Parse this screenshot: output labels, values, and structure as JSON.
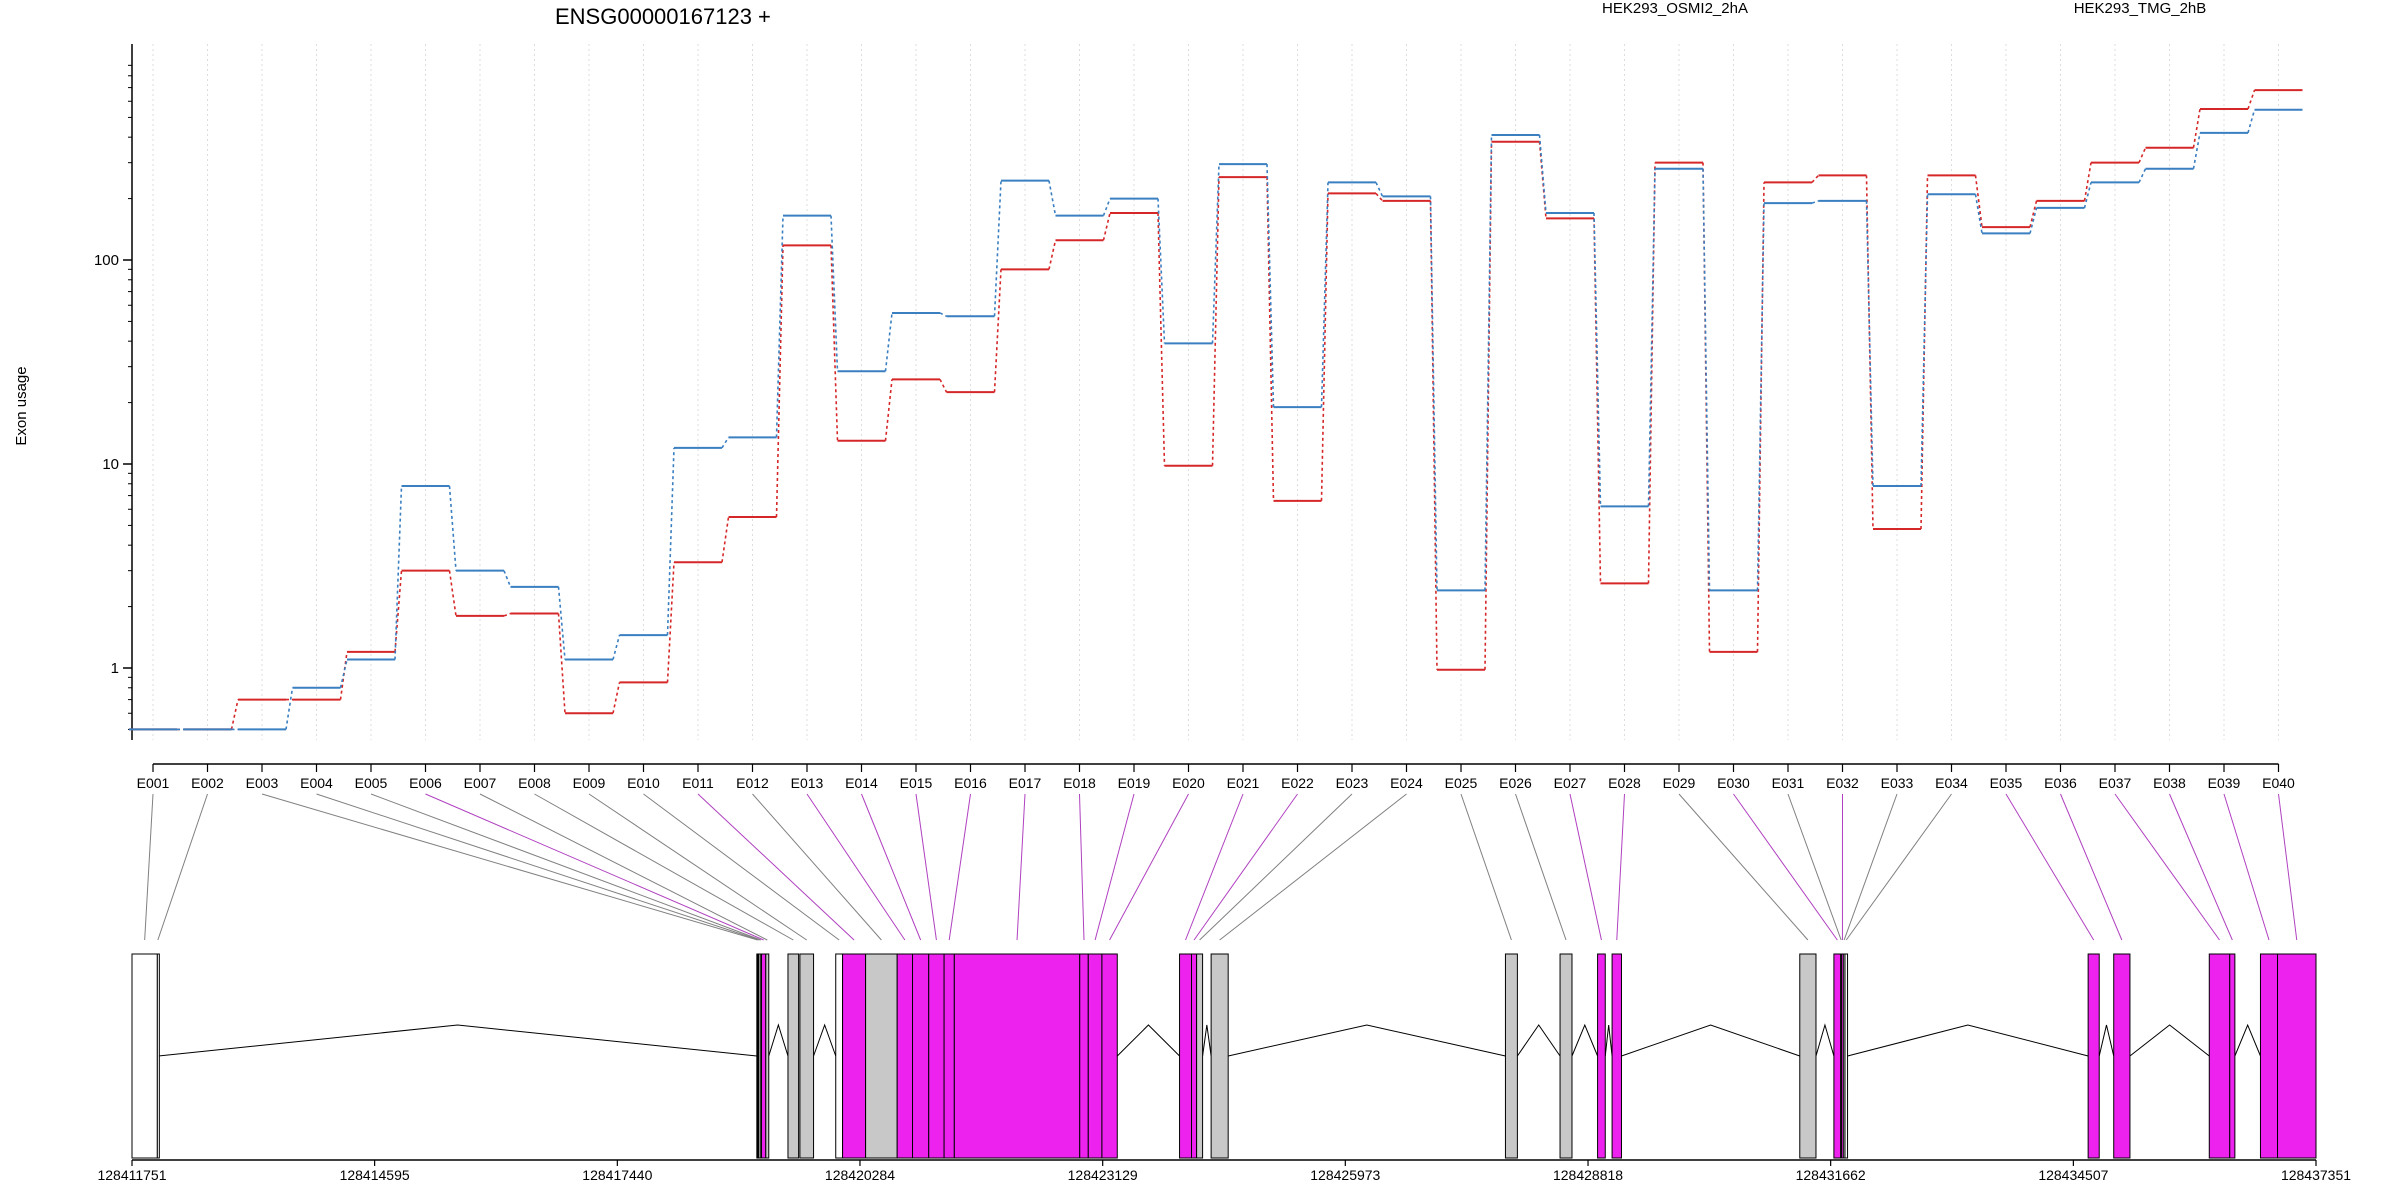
{
  "chart_data": {
    "type": "line",
    "title": "ENSG00000167123 +",
    "ylabel": "Exon usage",
    "xlabel": "",
    "y_scale": "log",
    "y_ticks": [
      {
        "value": 1,
        "label": "1"
      },
      {
        "value": 10,
        "label": "10"
      },
      {
        "value": 100,
        "label": "100"
      }
    ],
    "legend_placement": "top",
    "grid": "vertical dotted lines at exon bins",
    "exon_bins": [
      "E001",
      "E002",
      "E003",
      "E004",
      "E005",
      "E006",
      "E007",
      "E008",
      "E009",
      "E010",
      "E011",
      "E012",
      "E013",
      "E014",
      "E015",
      "E016",
      "E017",
      "E018",
      "E019",
      "E020",
      "E021",
      "E022",
      "E023",
      "E024",
      "E025",
      "E026",
      "E027",
      "E028",
      "E029",
      "E030",
      "E031",
      "E032",
      "E033",
      "E034",
      "E035",
      "E036",
      "E037",
      "E038",
      "E039",
      "E040"
    ],
    "series": [
      {
        "name": "HEK293_OSMI2_2hA",
        "color": "#d62728",
        "values": [
          0.5,
          0.5,
          0.7,
          0.7,
          1.2,
          3.0,
          1.8,
          1.85,
          0.6,
          0.85,
          3.3,
          5.5,
          118,
          13,
          26,
          22.5,
          90,
          125,
          170,
          9.8,
          255,
          6.6,
          212,
          195,
          0.98,
          380,
          160,
          2.6,
          300,
          1.2,
          240,
          260,
          4.8,
          260,
          145,
          195,
          300,
          355,
          550,
          680
        ]
      },
      {
        "name": "HEK293_TMG_2hB",
        "color": "#3a7fc0",
        "values": [
          0.5,
          0.5,
          0.5,
          0.8,
          1.1,
          7.8,
          3.0,
          2.5,
          1.1,
          1.45,
          12,
          13.5,
          165,
          28.5,
          55,
          53,
          245,
          165,
          200,
          39,
          295,
          19,
          240,
          205,
          2.4,
          410,
          170,
          6.2,
          280,
          2.4,
          190,
          195,
          7.8,
          210,
          135,
          180,
          240,
          280,
          420,
          545
        ]
      }
    ],
    "genomic_ticks": [
      "128411751",
      "128414595",
      "128417440",
      "128420284",
      "128423129",
      "128425973",
      "128428818",
      "128431662",
      "128434507",
      "128437351"
    ],
    "genomic_range": [
      128411751,
      128437351
    ],
    "exon_model": [
      {
        "bin": "E001",
        "start": 128411751,
        "end": 128412048,
        "fill": "#ffffff"
      },
      {
        "bin": "E002",
        "start": 128412048,
        "end": 128412060,
        "fill": "#ffffff"
      },
      {
        "bin": "E003",
        "start": 128419075,
        "end": 128419095,
        "fill": "#000000"
      },
      {
        "bin": "E004",
        "start": 128419095,
        "end": 128419115,
        "fill": "#c8c8c8"
      },
      {
        "bin": "E005",
        "start": 128419115,
        "end": 128419130,
        "fill": "#c8c8c8"
      },
      {
        "bin": "E006",
        "start": 128419130,
        "end": 128419180,
        "fill": "#ee22ee"
      },
      {
        "bin": "E007",
        "start": 128419180,
        "end": 128419215,
        "fill": "#c8c8c8"
      },
      {
        "bin": "E008",
        "start": 128419440,
        "end": 128419565,
        "fill": "#c8c8c8"
      },
      {
        "bin": "E009",
        "start": 128419580,
        "end": 128419740,
        "fill": "#c8c8c8"
      },
      {
        "bin": "E010",
        "start": 128420000,
        "end": 128420080,
        "fill": "#ffffff"
      },
      {
        "bin": "E011",
        "start": 128420080,
        "end": 128420350,
        "fill": "#ee22ee"
      },
      {
        "bin": "E012",
        "start": 128420350,
        "end": 128420720,
        "fill": "#c8c8c8"
      },
      {
        "bin": "E013",
        "start": 128420720,
        "end": 128420900,
        "fill": "#ee22ee"
      },
      {
        "bin": "E014",
        "start": 128420900,
        "end": 128421090,
        "fill": "#ee22ee"
      },
      {
        "bin": "E015",
        "start": 128421090,
        "end": 128421270,
        "fill": "#ee22ee"
      },
      {
        "bin": "E016",
        "start": 128421270,
        "end": 128421390,
        "fill": "#ee22ee"
      },
      {
        "bin": "E017",
        "start": 128421390,
        "end": 128422860,
        "fill": "#ee22ee"
      },
      {
        "bin": "E018",
        "start": 128422860,
        "end": 128422960,
        "fill": "#ee22ee"
      },
      {
        "bin": "E019",
        "start": 128422960,
        "end": 128423120,
        "fill": "#ee22ee"
      },
      {
        "bin": "E020",
        "start": 128423120,
        "end": 128423300,
        "fill": "#ee22ee"
      },
      {
        "bin": "E021",
        "start": 128424030,
        "end": 128424170,
        "fill": "#ee22ee"
      },
      {
        "bin": "E022",
        "start": 128424170,
        "end": 128424230,
        "fill": "#ee22ee"
      },
      {
        "bin": "E023",
        "start": 128424230,
        "end": 128424300,
        "fill": "#c8c8c8"
      },
      {
        "bin": "E024",
        "start": 128424400,
        "end": 128424600,
        "fill": "#c8c8c8"
      },
      {
        "bin": "E025",
        "start": 128427850,
        "end": 128427990,
        "fill": "#c8c8c8"
      },
      {
        "bin": "E026",
        "start": 128428490,
        "end": 128428630,
        "fill": "#c8c8c8"
      },
      {
        "bin": "E027",
        "start": 128428930,
        "end": 128429020,
        "fill": "#ee22ee"
      },
      {
        "bin": "E028",
        "start": 128429100,
        "end": 128429210,
        "fill": "#ee22ee"
      },
      {
        "bin": "E029",
        "start": 128431300,
        "end": 128431490,
        "fill": "#c8c8c8"
      },
      {
        "bin": "E030",
        "start": 128431700,
        "end": 128431780,
        "fill": "#ee22ee"
      },
      {
        "bin": "E031",
        "start": 128431780,
        "end": 128431790,
        "fill": "#c8c8c8"
      },
      {
        "bin": "E032",
        "start": 128431790,
        "end": 128431810,
        "fill": "#ee22ee"
      },
      {
        "bin": "E033",
        "start": 128431810,
        "end": 128431830,
        "fill": "#c8c8c8"
      },
      {
        "bin": "E034",
        "start": 128431830,
        "end": 128431860,
        "fill": "#ffffff"
      },
      {
        "bin": "E035",
        "start": 128434680,
        "end": 128434810,
        "fill": "#ee22ee"
      },
      {
        "bin": "E036",
        "start": 128434980,
        "end": 128435170,
        "fill": "#ee22ee"
      },
      {
        "bin": "E037",
        "start": 128436100,
        "end": 128436340,
        "fill": "#ee22ee"
      },
      {
        "bin": "E038",
        "start": 128436340,
        "end": 128436400,
        "fill": "#ee22ee"
      },
      {
        "bin": "E039",
        "start": 128436700,
        "end": 128436900,
        "fill": "#ee22ee"
      },
      {
        "bin": "E040",
        "start": 128436900,
        "end": 128437351,
        "fill": "#ee22ee"
      }
    ]
  }
}
